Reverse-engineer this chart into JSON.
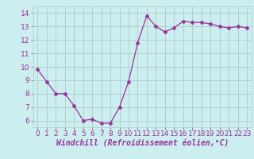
{
  "x": [
    0,
    1,
    2,
    3,
    4,
    5,
    6,
    7,
    8,
    9,
    10,
    11,
    12,
    13,
    14,
    15,
    16,
    17,
    18,
    19,
    20,
    21,
    22,
    23
  ],
  "y": [
    9.8,
    8.9,
    8.0,
    8.0,
    7.1,
    6.0,
    6.1,
    5.8,
    5.8,
    7.0,
    8.9,
    11.8,
    13.8,
    13.0,
    12.6,
    12.9,
    13.4,
    13.3,
    13.3,
    13.2,
    13.0,
    12.9,
    13.0,
    12.9
  ],
  "line_color": "#993399",
  "marker": "D",
  "marker_size": 2.5,
  "bg_color": "#cceeee",
  "grid_color": "#aacccc",
  "xlabel": "Windchill (Refroidissement éolien,°C)",
  "xlabel_fontsize": 7,
  "tick_fontsize": 6.5,
  "ylim": [
    5.5,
    14.5
  ],
  "xlim": [
    -0.5,
    23.5
  ],
  "yticks": [
    6,
    7,
    8,
    9,
    10,
    11,
    12,
    13,
    14
  ],
  "xticks": [
    0,
    1,
    2,
    3,
    4,
    5,
    6,
    7,
    8,
    9,
    10,
    11,
    12,
    13,
    14,
    15,
    16,
    17,
    18,
    19,
    20,
    21,
    22,
    23
  ]
}
